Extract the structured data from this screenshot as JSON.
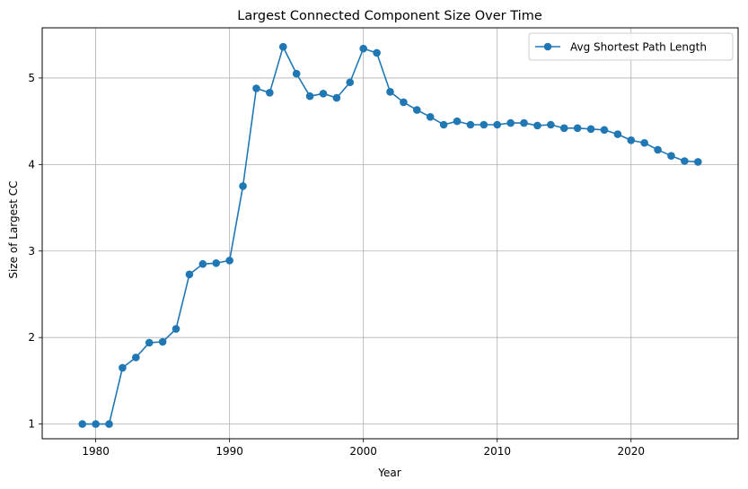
{
  "chart_data": {
    "type": "line",
    "title": "Largest Connected Component Size Over Time",
    "xlabel": "Year",
    "ylabel": "Size of Largest CC",
    "xlim": [
      1976,
      2028
    ],
    "ylim": [
      0.83,
      5.58
    ],
    "xticks": [
      1980,
      1990,
      2000,
      2010,
      2020
    ],
    "yticks": [
      1,
      2,
      3,
      4,
      5
    ],
    "grid": true,
    "legend_position": "top-right",
    "series": [
      {
        "name": "Avg Shortest Path Length",
        "color": "#1f77b4",
        "marker": "circle",
        "x": [
          1979,
          1980,
          1981,
          1982,
          1983,
          1984,
          1985,
          1986,
          1987,
          1988,
          1989,
          1990,
          1991,
          1992,
          1993,
          1994,
          1995,
          1996,
          1997,
          1998,
          1999,
          2000,
          2001,
          2002,
          2003,
          2004,
          2005,
          2006,
          2007,
          2008,
          2009,
          2010,
          2011,
          2012,
          2013,
          2014,
          2015,
          2016,
          2017,
          2018,
          2019,
          2020,
          2021,
          2022,
          2023,
          2024,
          2025
        ],
        "y": [
          1.0,
          1.0,
          1.0,
          1.65,
          1.77,
          1.94,
          1.95,
          2.1,
          2.73,
          2.85,
          2.86,
          2.89,
          3.75,
          4.88,
          4.83,
          5.36,
          5.05,
          4.79,
          4.82,
          4.77,
          4.95,
          5.34,
          5.29,
          4.84,
          4.72,
          4.63,
          4.55,
          4.46,
          4.5,
          4.46,
          4.46,
          4.46,
          4.48,
          4.48,
          4.45,
          4.46,
          4.42,
          4.42,
          4.41,
          4.4,
          4.35,
          4.28,
          4.25,
          4.17,
          4.1,
          4.04,
          4.03
        ]
      }
    ]
  }
}
